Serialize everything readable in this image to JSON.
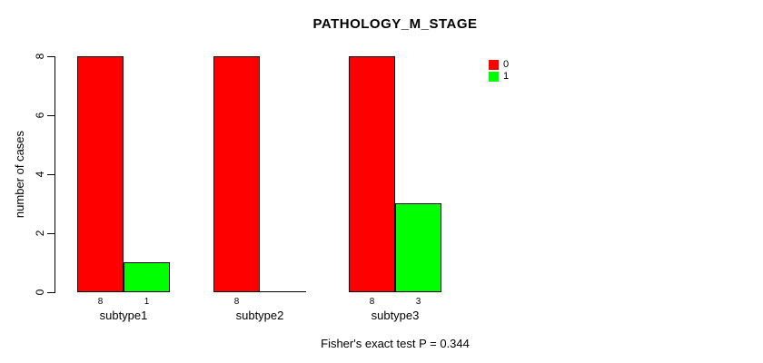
{
  "title": "PATHOLOGY_M_STAGE",
  "ylabel": "number of cases",
  "footer": "Fisher's exact test P = 0.344",
  "colors": {
    "series0": "#ff0000",
    "series1": "#00ff00",
    "axis": "#000000",
    "background": "#ffffff"
  },
  "legend": {
    "position": "top-right",
    "items": [
      {
        "label": "0",
        "color": "#ff0000"
      },
      {
        "label": "1",
        "color": "#00ff00"
      }
    ]
  },
  "chart_data": {
    "type": "bar",
    "title": "PATHOLOGY_M_STAGE",
    "xlabel": "",
    "ylabel": "number of cases",
    "categories": [
      "subtype1",
      "subtype2",
      "subtype3"
    ],
    "series": [
      {
        "name": "0",
        "color": "#ff0000",
        "values": [
          8,
          8,
          8
        ]
      },
      {
        "name": "1",
        "color": "#00ff00",
        "values": [
          1,
          0,
          3
        ]
      }
    ],
    "value_labels": [
      [
        "8",
        "1"
      ],
      [
        "8",
        ""
      ],
      [
        "8",
        "3"
      ]
    ],
    "ylim": [
      0,
      8
    ],
    "yticks": [
      0,
      2,
      4,
      6,
      8
    ],
    "grid": false,
    "legend_position": "top-right",
    "annotation": "Fisher's exact test P = 0.344"
  }
}
